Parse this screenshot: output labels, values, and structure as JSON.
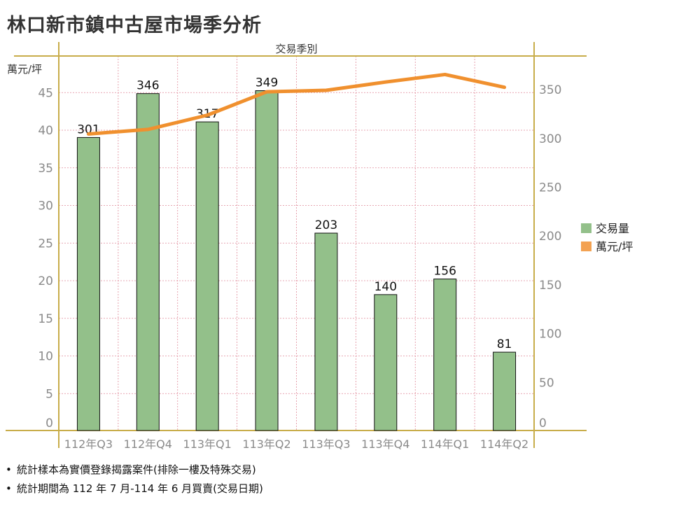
{
  "title": "林口新市鎮中古屋市場季分析",
  "chart_data": {
    "type": "bar+line",
    "xlabel": "交易季別",
    "ylabel_left": "萬元/坪",
    "categories": [
      "112年Q3",
      "112年Q4",
      "113年Q1",
      "113年Q2",
      "113年Q3",
      "113年Q4",
      "114年Q1",
      "114年Q2"
    ],
    "left_ticks": [
      0,
      5,
      10,
      15,
      20,
      25,
      30,
      35,
      40,
      45
    ],
    "right_ticks": [
      0,
      50,
      100,
      150,
      200,
      250,
      300,
      350
    ],
    "ylim_left": [
      0,
      49
    ],
    "ylim_right": [
      0,
      380
    ],
    "grid": true,
    "legend_position": "right",
    "series": [
      {
        "name": "交易量",
        "type": "bar",
        "axis": "right",
        "color": "#93c08a",
        "values": [
          301,
          346,
          317,
          349,
          203,
          140,
          156,
          81
        ]
      },
      {
        "name": "萬元/坪",
        "type": "line",
        "axis": "left",
        "color": "#f0902e",
        "values": [
          39.5,
          40.1,
          42.0,
          45.1,
          45.3,
          46.4,
          47.4,
          45.7
        ]
      }
    ]
  },
  "notes": [
    "統計樣本為實價登錄揭露案件(排除一樓及特殊交易)",
    "統計期間為 112 年 7 月-114 年 6 月買賣(交易日期)"
  ]
}
